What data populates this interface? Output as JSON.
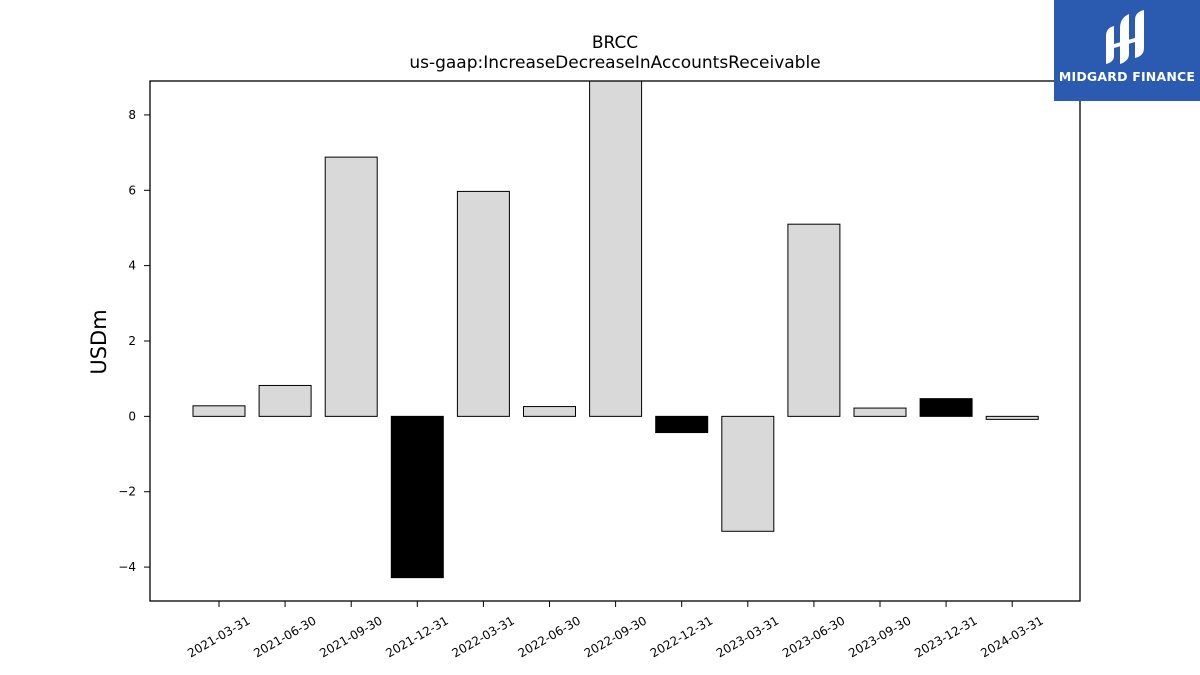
{
  "logo": {
    "name": "MIDGARD FINANCE",
    "background_color": "#2a5bb0"
  },
  "chart_data": {
    "type": "bar",
    "title": "BRCC",
    "subtitle": "us-gaap:IncreaseDecreaseInAccountsReceivable",
    "xlabel": "",
    "ylabel": "USDm",
    "ylim": [
      -4.9,
      8.9
    ],
    "yticks": [
      -4,
      -2,
      0,
      2,
      4,
      6,
      8
    ],
    "ytick_labels": [
      "−4",
      "−2",
      "0",
      "2",
      "4",
      "6",
      "8"
    ],
    "categories": [
      "2021-03-31",
      "2021-06-30",
      "2021-09-30",
      "2021-12-31",
      "2022-03-31",
      "2022-06-30",
      "2022-09-30",
      "2022-12-31",
      "2023-03-31",
      "2023-06-30",
      "2023-09-30",
      "2023-12-31",
      "2024-03-31"
    ],
    "values": [
      0.28,
      0.82,
      6.88,
      -4.28,
      5.97,
      0.26,
      8.9,
      -0.43,
      -3.05,
      5.1,
      0.22,
      0.47,
      -0.08
    ],
    "bar_colors": [
      "#d9d9d9",
      "#d9d9d9",
      "#d9d9d9",
      "#000000",
      "#d9d9d9",
      "#d9d9d9",
      "#d9d9d9",
      "#000000",
      "#d9d9d9",
      "#d9d9d9",
      "#d9d9d9",
      "#000000",
      "#d9d9d9"
    ],
    "grid": false,
    "legend": false
  }
}
